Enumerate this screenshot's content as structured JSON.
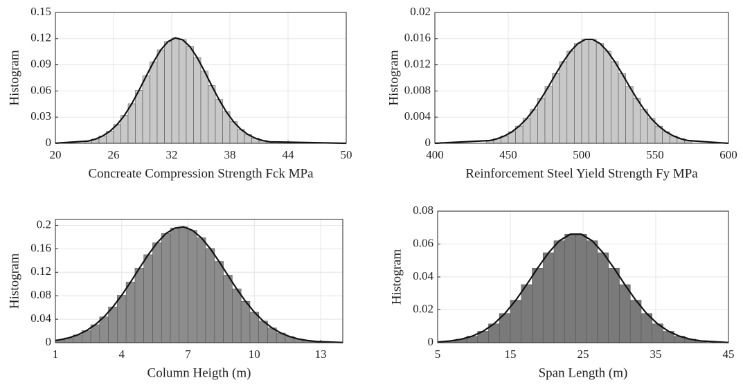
{
  "chart_data": [
    {
      "type": "histogram",
      "xlabel": "Concreate Compression Strength Fck  MPa",
      "ylabel": "Histogram",
      "bins": [
        23,
        23.75,
        24.5,
        25.25,
        26,
        26.75,
        27.5,
        28.25,
        29,
        29.75,
        30.5,
        31.25,
        32,
        32.75,
        33.5,
        34.25,
        35,
        35.75,
        36.5,
        37.25,
        38,
        38.75,
        39.5,
        40.25,
        41,
        41.75,
        42.5
      ],
      "counts": [
        0.0026,
        0.0048,
        0.0084,
        0.0138,
        0.0216,
        0.0321,
        0.0453,
        0.0607,
        0.0772,
        0.0933,
        0.1071,
        0.1167,
        0.1208,
        0.1187,
        0.1109,
        0.0983,
        0.0827,
        0.0661,
        0.0502,
        0.0362,
        0.0248,
        0.0161,
        0.01,
        0.0058,
        0.0032,
        0.0017
      ],
      "curve": {
        "x": [
          20,
          23.375,
          24.125,
          24.875,
          25.625,
          26.375,
          27.125,
          27.875,
          28.625,
          29.375,
          30.125,
          30.875,
          31.625,
          32.375,
          33.125,
          33.875,
          34.625,
          35.375,
          36.125,
          36.875,
          37.625,
          38.375,
          39.125,
          39.875,
          40.625,
          41.375,
          42.125,
          50
        ],
        "values": [
          0.0001,
          0.0026,
          0.0048,
          0.0084,
          0.0138,
          0.0216,
          0.0321,
          0.0453,
          0.0607,
          0.0772,
          0.0933,
          0.1071,
          0.1167,
          0.1208,
          0.1187,
          0.1109,
          0.0983,
          0.0827,
          0.0661,
          0.0502,
          0.0362,
          0.0248,
          0.0161,
          0.01,
          0.0058,
          0.0032,
          0.0017,
          0
        ]
      },
      "color": "#c8c8c8",
      "xlim": [
        20,
        50
      ],
      "xticks": [
        20,
        26,
        32,
        38,
        44,
        50
      ],
      "ylim": [
        0,
        0.15
      ],
      "yticks": [
        0,
        0.03,
        0.06,
        0.09,
        0.12,
        0.15
      ],
      "grid": true
    },
    {
      "type": "histogram",
      "xlabel": "Reinforcement Steel Yield Strength Fy MPa",
      "ylabel": "Histogram",
      "bins": [
        435,
        440,
        445,
        450,
        455,
        460,
        465,
        470,
        475,
        480,
        485,
        490,
        495,
        500,
        505,
        510,
        515,
        520,
        525,
        530,
        535,
        540,
        545,
        550,
        555,
        560,
        565,
        570,
        575
      ],
      "counts": [
        0.00042,
        0.0007,
        0.00113,
        0.00176,
        0.00263,
        0.00376,
        0.00518,
        0.00686,
        0.00871,
        0.01065,
        0.01249,
        0.01408,
        0.01526,
        0.01588,
        0.01588,
        0.01526,
        0.01408,
        0.01249,
        0.01065,
        0.00871,
        0.00686,
        0.00518,
        0.00376,
        0.00263,
        0.00176,
        0.00113,
        0.0007,
        0.00042
      ],
      "curve": {
        "x": [
          400,
          437.5,
          442.5,
          447.5,
          452.5,
          457.5,
          462.5,
          467.5,
          472.5,
          477.5,
          482.5,
          487.5,
          492.5,
          497.5,
          502.5,
          507.5,
          512.5,
          517.5,
          522.5,
          527.5,
          532.5,
          537.5,
          542.5,
          547.5,
          552.5,
          557.5,
          562.5,
          567.5,
          572.5,
          600
        ],
        "values": [
          0,
          0.00042,
          0.0007,
          0.00113,
          0.00176,
          0.00263,
          0.00376,
          0.00518,
          0.00686,
          0.00871,
          0.01065,
          0.01249,
          0.01408,
          0.01526,
          0.01588,
          0.01588,
          0.01526,
          0.01408,
          0.01249,
          0.01065,
          0.00871,
          0.00686,
          0.00518,
          0.00376,
          0.00263,
          0.00176,
          0.00113,
          0.0007,
          0.00042,
          0
        ]
      },
      "color": "#c8c8c8",
      "xlim": [
        400,
        600
      ],
      "xticks": [
        400,
        450,
        500,
        550,
        600
      ],
      "ylim": [
        0,
        0.02
      ],
      "yticks": [
        0,
        0.004,
        0.008,
        0.012,
        0.016,
        0.02
      ],
      "grid": true
    },
    {
      "type": "histogram",
      "xlabel": "Column Heigth (m)",
      "ylabel": "Histogram",
      "bins": [
        1,
        1.4,
        1.8,
        2.2,
        2.6,
        3,
        3.4,
        3.8,
        4.2,
        4.6,
        5,
        5.4,
        5.8,
        6.2,
        6.6,
        7,
        7.4,
        7.8,
        8.2,
        8.6,
        9,
        9.4,
        9.8,
        10.2,
        10.6,
        11,
        11.4,
        11.8,
        12.2,
        12.6,
        13
      ],
      "counts": [
        0.0049,
        0.0082,
        0.0132,
        0.0205,
        0.0306,
        0.044,
        0.0608,
        0.0808,
        0.1033,
        0.1269,
        0.1499,
        0.1702,
        0.186,
        0.1953,
        0.1973,
        0.1915,
        0.1788,
        0.1606,
        0.1386,
        0.1151,
        0.0918,
        0.0705,
        0.052,
        0.0369,
        0.0252,
        0.0165,
        0.0104,
        0.0063,
        0.0037,
        0.0021
      ],
      "curve": {
        "x": [
          1,
          1.2,
          1.6,
          2,
          2.4,
          2.8,
          3.2,
          3.6,
          4,
          4.4,
          4.8,
          5.2,
          5.6,
          6,
          6.4,
          6.8,
          7.2,
          7.6,
          8,
          8.4,
          8.8,
          9.2,
          9.6,
          10,
          10.4,
          10.8,
          11.2,
          11.6,
          12,
          12.4,
          12.8,
          14
        ],
        "values": [
          0.0037,
          0.0049,
          0.0082,
          0.0132,
          0.0205,
          0.0306,
          0.044,
          0.0608,
          0.0808,
          0.1033,
          0.1269,
          0.1499,
          0.1702,
          0.186,
          0.1953,
          0.1973,
          0.1915,
          0.1788,
          0.1606,
          0.1386,
          0.1151,
          0.0918,
          0.0705,
          0.052,
          0.0369,
          0.0252,
          0.0165,
          0.0104,
          0.0063,
          0.0037,
          0.0021,
          0.0003
        ]
      },
      "color": "#8c8c8c",
      "xlim": [
        1,
        14
      ],
      "xticks": [
        1,
        4,
        7,
        10,
        13
      ],
      "ylim": [
        0,
        0.21
      ],
      "yticks": [
        0,
        0.04,
        0.08,
        0.12,
        0.16,
        0.2
      ],
      "grid": true
    },
    {
      "type": "histogram",
      "xlabel": "Span Length (m)",
      "ylabel": "Histogram",
      "bins": [
        6,
        7.5,
        9,
        10.5,
        12,
        13.5,
        15,
        16.5,
        18,
        19.5,
        21,
        22.5,
        24,
        25.5,
        27,
        28.5,
        30,
        31.5,
        33,
        34.5,
        36,
        37.5,
        39,
        40.5,
        42
      ],
      "counts": [
        0.00107,
        0.00212,
        0.00396,
        0.00696,
        0.01146,
        0.01776,
        0.02585,
        0.03531,
        0.04535,
        0.0547,
        0.062,
        0.066,
        0.066,
        0.062,
        0.0547,
        0.04535,
        0.03531,
        0.02585,
        0.01776,
        0.01146,
        0.00696,
        0.00396,
        0.00212,
        0.00107
      ],
      "curve": {
        "x": [
          5,
          6.75,
          8.25,
          9.75,
          11.25,
          12.75,
          14.25,
          15.75,
          17.25,
          18.75,
          20.25,
          21.75,
          23.25,
          24.75,
          26.25,
          27.75,
          29.25,
          30.75,
          32.25,
          33.75,
          35.25,
          36.75,
          38.25,
          39.75,
          41.25,
          45
        ],
        "values": [
          0.0004,
          0.00107,
          0.00212,
          0.00396,
          0.00696,
          0.01146,
          0.01776,
          0.02585,
          0.03531,
          0.04535,
          0.0547,
          0.062,
          0.066,
          0.066,
          0.062,
          0.0547,
          0.04535,
          0.03531,
          0.02585,
          0.01776,
          0.01146,
          0.00696,
          0.00396,
          0.00212,
          0.00107,
          0.0001
        ]
      },
      "color": "#7a7a7a",
      "xlim": [
        5,
        45
      ],
      "xticks": [
        5,
        15,
        25,
        35,
        45
      ],
      "ylim": [
        0,
        0.08
      ],
      "yticks": [
        0,
        0.02,
        0.04,
        0.06,
        0.08
      ],
      "grid": true
    }
  ]
}
